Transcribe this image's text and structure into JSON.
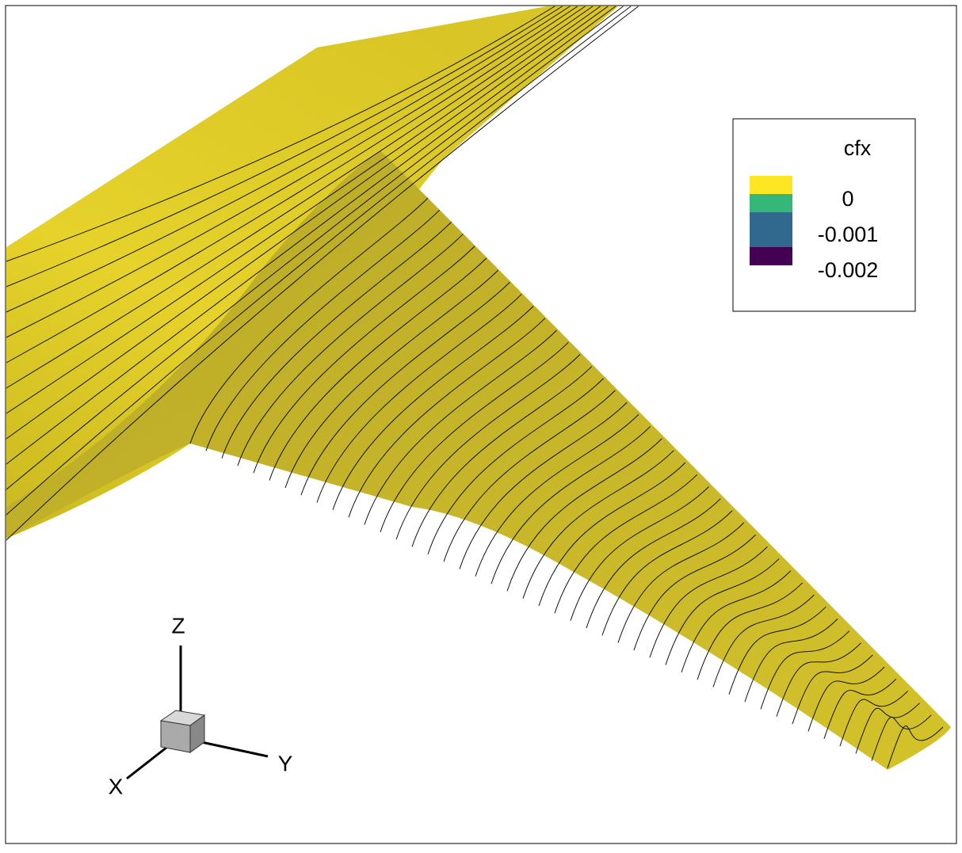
{
  "legend": {
    "title": "cfx",
    "levels": [
      {
        "label": "0",
        "color": "#f2dc2a"
      },
      {
        "label": "-0.001",
        "color": "#35b779"
      },
      {
        "label": "-0.002",
        "color": "#31688e"
      },
      {
        "label": null,
        "color": "#440154"
      }
    ],
    "swatch_top_color": "#fde725"
  },
  "axes": {
    "z": "Z",
    "y": "Y",
    "x": "X"
  }
}
